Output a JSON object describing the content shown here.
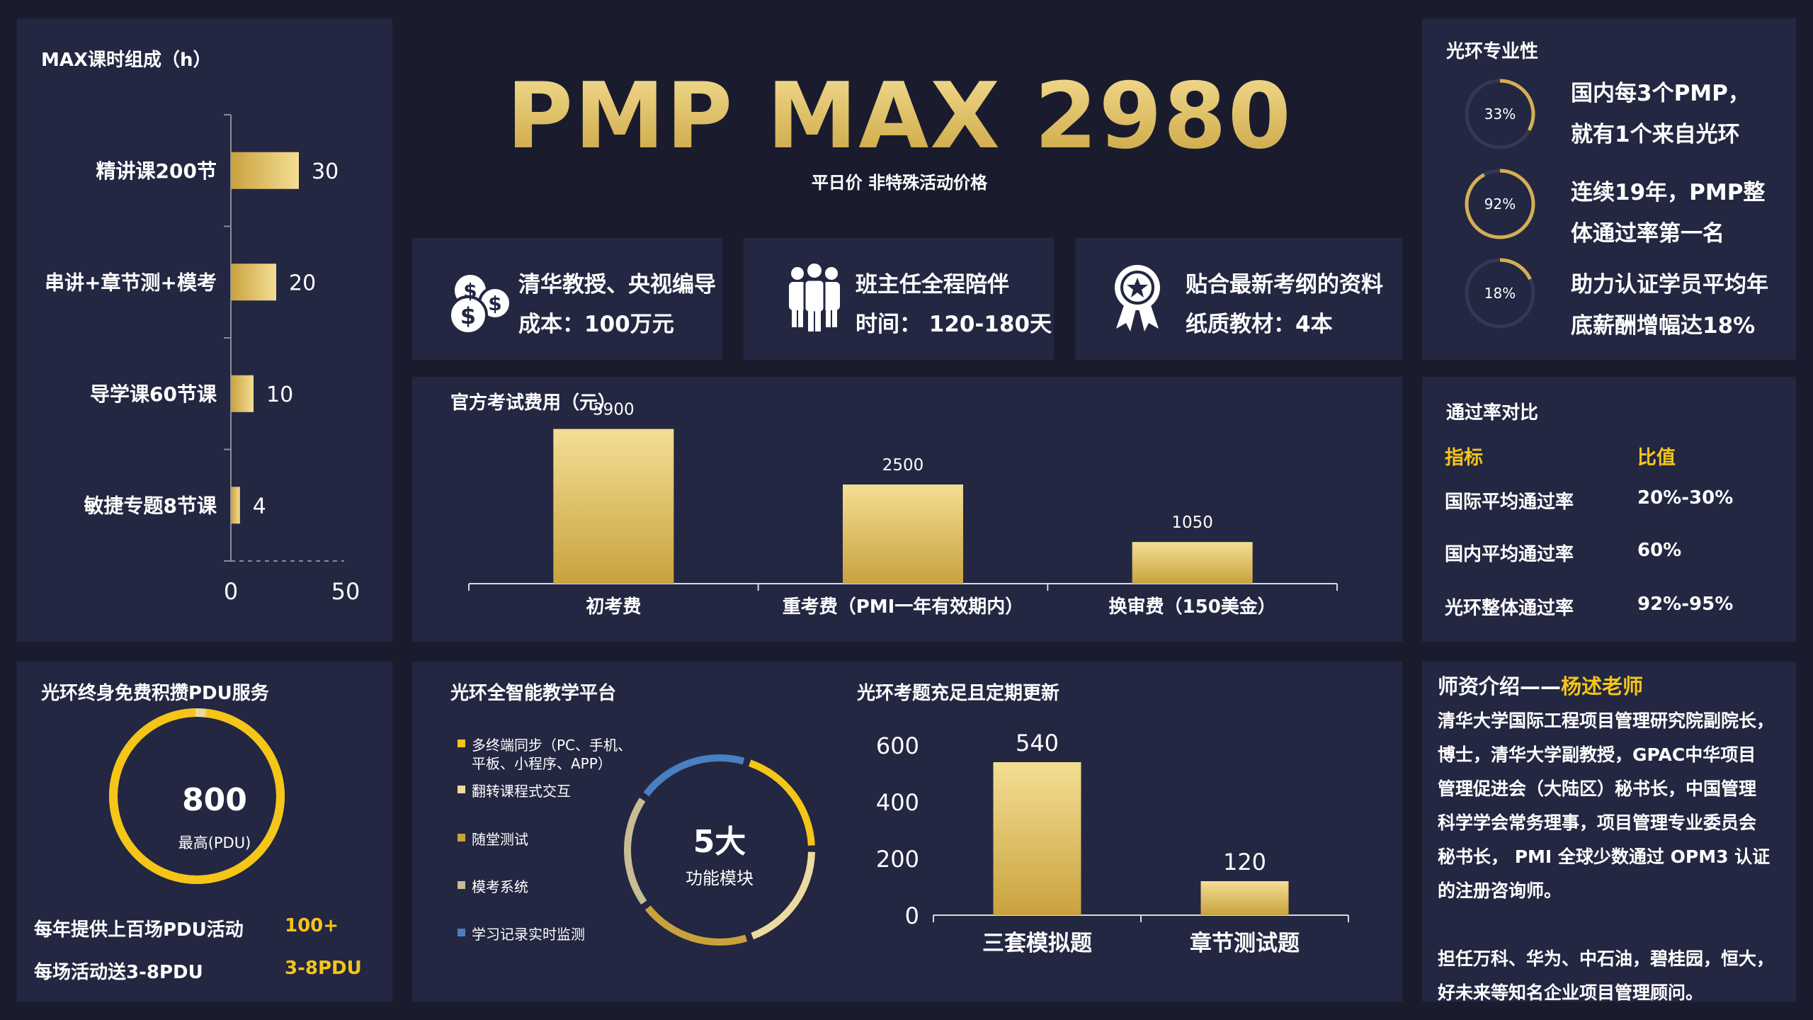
{
  "colors": {
    "background": "#1a1c2e",
    "panel": "#232741",
    "gold_light": "#f4de94",
    "gold_dark": "#c9a23e",
    "accent_yellow": "#f5c518",
    "accent_blue": "#4a7fc1"
  },
  "header": {
    "title": "PMP MAX 2980",
    "subtitle": "平日价 非特殊活动价格"
  },
  "hours_chart": {
    "title": "MAX课时组成（h）",
    "chart_data": {
      "type": "bar",
      "orientation": "horizontal",
      "categories": [
        "精讲课200节",
        "串讲+章节测+模考",
        "导学课60节课",
        "敏捷专题8节课"
      ],
      "values": [
        30,
        20,
        10,
        4
      ],
      "value_labels": [
        "30",
        "20",
        "10",
        "4"
      ],
      "xlim": [
        0,
        50
      ],
      "x_ticks": [
        "0",
        "50"
      ]
    }
  },
  "features": [
    {
      "icon": "money-icon",
      "line1": "清华教授、央视编导",
      "line2": "成本：100万元"
    },
    {
      "icon": "people-icon",
      "line1": "班主任全程陪伴",
      "line2": "时间： 120-180天"
    },
    {
      "icon": "award-icon",
      "line1": "贴合最新考纲的资料",
      "line2": "纸质教材：4本"
    }
  ],
  "fee_chart": {
    "title": "官方考试费用（元）",
    "chart_data": {
      "type": "bar",
      "categories": [
        "初考费",
        "重考费（PMI一年有效期内）",
        "换审费（150美金）"
      ],
      "values": [
        3900,
        2500,
        1050
      ],
      "value_labels": [
        "3900",
        "2500",
        "1050"
      ],
      "ylim": [
        0,
        4500
      ]
    }
  },
  "professional": {
    "title": "光环专业性",
    "items": [
      {
        "percent": 33,
        "label": "33%",
        "line1": "国内每3个PMP，",
        "line2": "就有1个来自光环"
      },
      {
        "percent": 92,
        "label": "92%",
        "line1": "连续19年，PMP整",
        "line2": "体通过率第一名"
      },
      {
        "percent": 18,
        "label": "18%",
        "line1": "助力认证学员平均年",
        "line2": "底薪酬增幅达18%"
      }
    ]
  },
  "pass_rate": {
    "title": "通过率对比",
    "headers": [
      "指标",
      "比值"
    ],
    "rows": [
      [
        "国际平均通过率",
        "20%-30%"
      ],
      [
        "国内平均通过率",
        "60%"
      ],
      [
        "光环整体通过率",
        "92%-95%"
      ]
    ]
  },
  "pdu": {
    "title": "光环终身免费积攒PDU服务",
    "value": "800",
    "value_caption": "最高(PDU)",
    "fill_fraction": 0.98,
    "rows": [
      {
        "label": "每年提供上百场PDU活动",
        "value": "100+"
      },
      {
        "label": "每场活动送3-8PDU",
        "value": "3-8PDU"
      }
    ]
  },
  "platform": {
    "title": "光环全智能教学平台",
    "center_value": "5大",
    "center_caption": "功能模块",
    "chart_data": {
      "type": "pie",
      "variant": "donut",
      "slices": [
        {
          "label": "多终端同步（PC、手机、平板、小程序、APP）",
          "label_line1": "多终端同步（PC、手机、",
          "label_line2": "平板、小程序、APP）",
          "color": "#f5c518",
          "value": 20
        },
        {
          "label": "翻转课程式交互",
          "color": "#ecdba0",
          "value": 20
        },
        {
          "label": "随堂测试",
          "color": "#c9a23e",
          "value": 20
        },
        {
          "label": "模考系统",
          "color": "#c8bd94",
          "value": 20
        },
        {
          "label": "学习记录实时监测",
          "color": "#4a7fc1",
          "value": 20
        }
      ]
    }
  },
  "questions_chart": {
    "title": "光环考题充足且定期更新",
    "chart_data": {
      "type": "bar",
      "categories": [
        "三套模拟题",
        "章节测试题"
      ],
      "values": [
        540,
        120
      ],
      "value_labels": [
        "540",
        "120"
      ],
      "ylim": [
        0,
        600
      ],
      "y_ticks": [
        "0",
        "200",
        "400",
        "600"
      ]
    }
  },
  "teacher": {
    "title_prefix": "师资介绍——",
    "title_name": "杨述老师",
    "para1": [
      "清华大学国际工程项目管理研究院副院长，",
      "博士，清华大学副教授，GPAC中华项目",
      "管理促进会（大陆区）秘书长，中国管理",
      "科学学会常务理事，项目管理专业委员会",
      "秘书长， PMI 全球少数通过 OPM3 认证",
      "的注册咨询师。"
    ],
    "para2": [
      "担任万科、华为、中石油，碧桂园，恒大，",
      "好未来等知名企业项目管理顾问。"
    ]
  }
}
